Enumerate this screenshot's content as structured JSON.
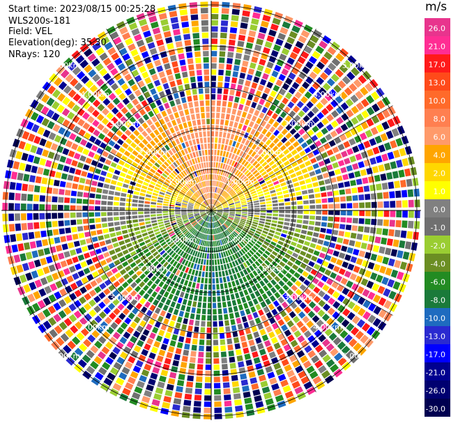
{
  "header": {
    "start_time": "Start time: 2023/08/15 00:25:28",
    "instrument": "WLS200s-181",
    "field": "Field: VEL",
    "elevation": "Elevation(deg): 35.30",
    "nrays": "NRays: 120"
  },
  "chart_data": {
    "type": "ppi",
    "field": "VEL",
    "units": "m/s",
    "elevation_deg": 35.3,
    "nrays": 120,
    "rings_km": [
      1.0,
      2.0,
      3.0,
      4.0,
      5.0
    ],
    "ring_labels": [
      "1.00km",
      "2.00km",
      "3.00km",
      "4.00km",
      "5.00km"
    ],
    "max_range_km": 5.1,
    "colorbar": {
      "unit": "m/s",
      "ticks": [
        "26.0",
        "21.0",
        "17.0",
        "13.0",
        "10.0",
        "8.0",
        "6.0",
        "4.0",
        "2.0",
        "1.0",
        "0.0",
        "-1.0",
        "-2.0",
        "-4.0",
        "-6.0",
        "-8.0",
        "-10.0",
        "-13.0",
        "-17.0",
        "-21.0",
        "-26.0",
        "-30.0"
      ],
      "colors": [
        "#e8348d",
        "#ff2d93",
        "#ff1a1a",
        "#ff4a1a",
        "#ff6a2a",
        "#ff7f50",
        "#ff9a6a",
        "#ffa500",
        "#ffd700",
        "#ffff00",
        "#808080",
        "#707070",
        "#9acd32",
        "#6b8e23",
        "#228b22",
        "#1a7a3a",
        "#1e6bbf",
        "#2a2ad0",
        "#0000ff",
        "#000090",
        "#000070",
        "#000050"
      ]
    },
    "pattern": {
      "near_range_km": 2.7,
      "north_half": "positive velocities (orange/yellow), strongest to the north",
      "south_half": "negative velocities (green), strongest to the south",
      "far_range": "noise"
    }
  }
}
